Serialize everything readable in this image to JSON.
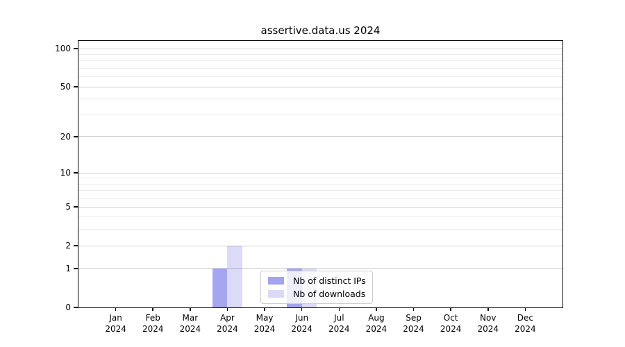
{
  "chart_data": {
    "type": "bar",
    "title": "assertive.data.us 2024",
    "categories": [
      "Jan",
      "Feb",
      "Mar",
      "Apr",
      "May",
      "Jun",
      "Jul",
      "Aug",
      "Sep",
      "Oct",
      "Nov",
      "Dec"
    ],
    "year_label": "2024",
    "series": [
      {
        "name": "Nb of distinct IPs",
        "color": "#a3a3ef",
        "fill": "rgba(75,75,225,0.5)",
        "values": [
          0,
          0,
          0,
          1,
          0,
          1,
          0,
          0,
          0,
          0,
          0,
          0
        ]
      },
      {
        "name": "Nb of downloads",
        "color": "#dadaf7",
        "fill": "rgba(75,75,220,0.2)",
        "values": [
          0,
          0,
          0,
          2,
          0,
          1,
          0,
          0,
          0,
          0,
          0,
          0
        ]
      }
    ],
    "yscale": "log1p",
    "ylim": [
      0,
      115
    ],
    "y_major_ticks": [
      0,
      1,
      2,
      5,
      10,
      20,
      50,
      100
    ],
    "y_minor_ticks": [
      3,
      4,
      6,
      7,
      8,
      9,
      30,
      40,
      60,
      70,
      80,
      90
    ],
    "grid": "horizontal",
    "grid_major_color": "#d0d0d0",
    "grid_minor_color": "#ececec",
    "legend_position": "inside-lower-center"
  }
}
